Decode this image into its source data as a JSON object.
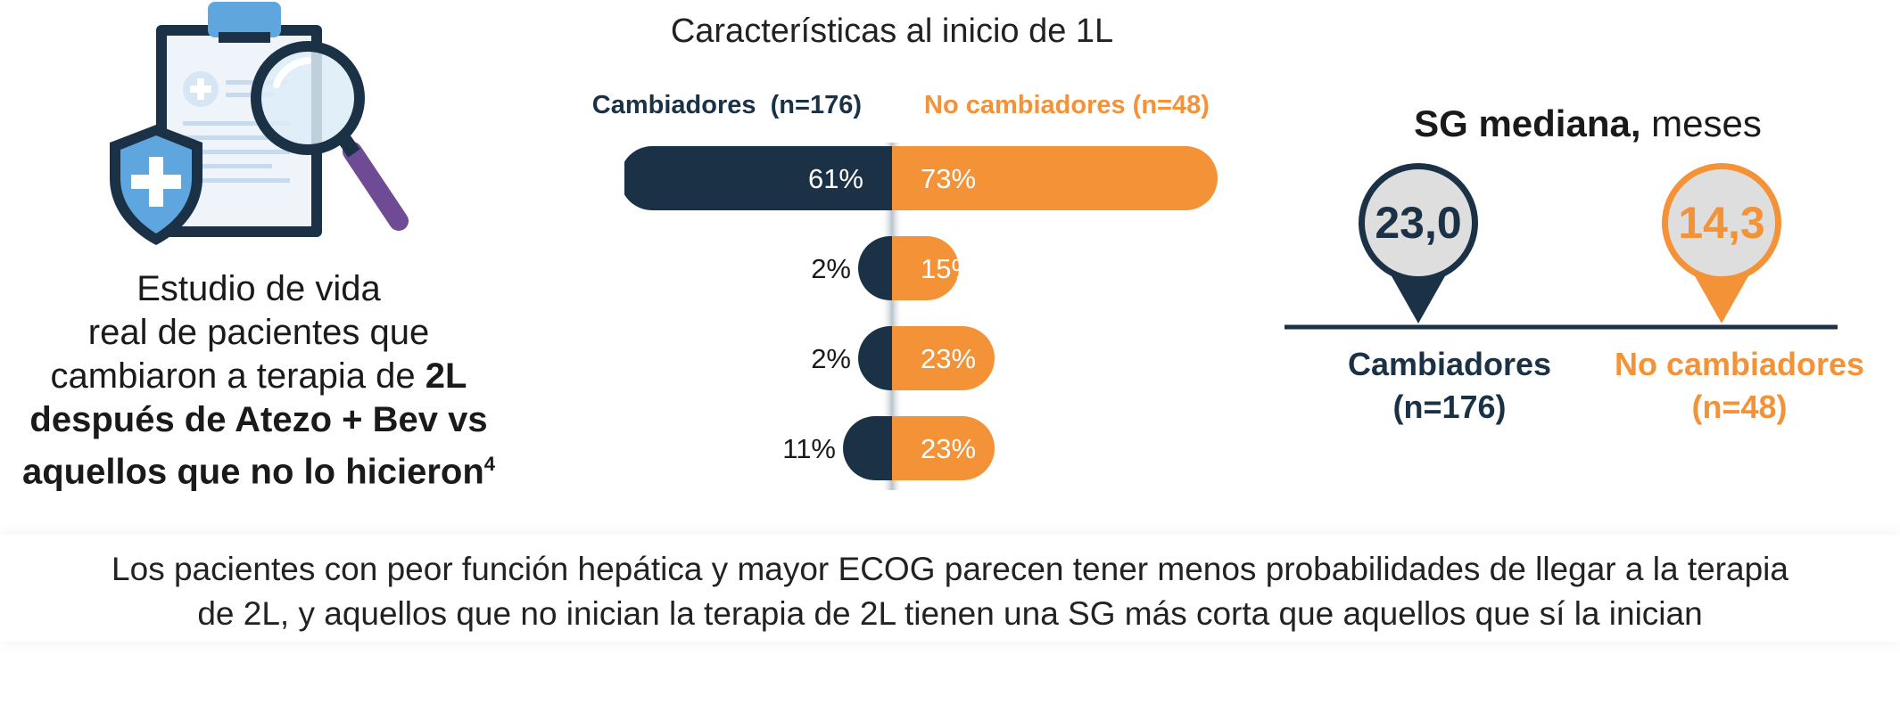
{
  "colors": {
    "navy": "#1b3246",
    "orange": "#f39237",
    "light_blue": "#5fa6df",
    "purple": "#6f4b96"
  },
  "illustration": {
    "icons": [
      "clipboard-icon",
      "shield-cross-icon",
      "magnifier-icon"
    ]
  },
  "study": {
    "line1": "Estudio de vida",
    "line2": "real de pacientes que",
    "line3_normal": "cambiaron a terapia de ",
    "line3_bold": "2L",
    "line4": "después de Atezo + Bev vs",
    "line5": "aquellos que no lo hicieron",
    "superscript": "4"
  },
  "chart_data": {
    "type": "bar",
    "title": "Características al inicio de 1L",
    "categories": [
      "",
      "",
      "",
      ""
    ],
    "series": [
      {
        "name": "Cambiadores  (n=176)",
        "values": [
          61,
          2,
          2,
          11
        ],
        "labels": [
          "61%",
          "2%",
          "2%",
          "11%"
        ],
        "color": "#1b3246",
        "direction": "left"
      },
      {
        "name": "No cambiadores (n=48)",
        "values": [
          73,
          15,
          23,
          23
        ],
        "labels": [
          "73%",
          "15%",
          "23%",
          "23%"
        ],
        "color": "#f39237",
        "direction": "right"
      }
    ],
    "xlim": [
      0,
      100
    ],
    "grid": false,
    "legend": "top"
  },
  "os": {
    "title_bold": "SG mediana,",
    "title_normal": " meses",
    "left": {
      "value": "23,0",
      "label1": "Cambiadores",
      "label2": "(n=176)"
    },
    "right": {
      "value": "14,3",
      "label1": "No cambiadores",
      "label2": "(n=48)"
    }
  },
  "footer": {
    "line1": "Los pacientes con peor función hepática y mayor ECOG parecen tener menos probabilidades de llegar a la terapia",
    "line2": "de 2L, y aquellos que no inician la terapia de 2L tienen una SG más corta que aquellos que sí la inician"
  }
}
